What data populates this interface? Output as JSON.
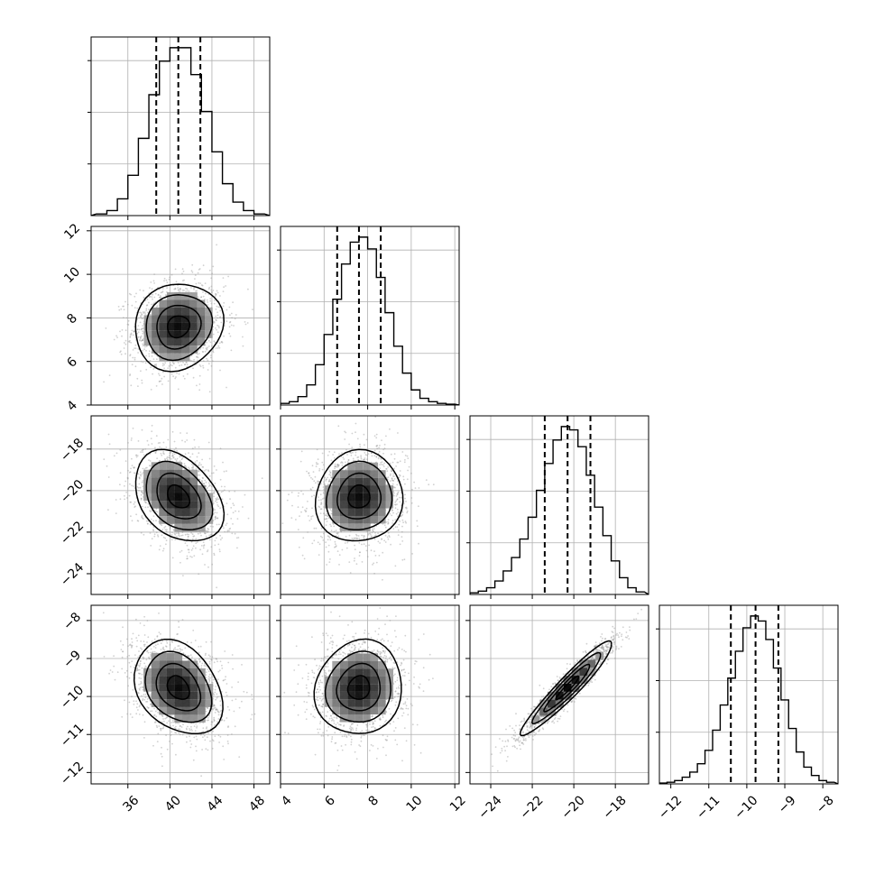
{
  "chart_data": {
    "type": "corner",
    "parameters": [
      {
        "range": [
          32.5,
          49.5
        ],
        "ticks": [
          36,
          40,
          44,
          48
        ],
        "tick_labels": [
          "36",
          "40",
          "44",
          "48"
        ],
        "quantiles": [
          38.7,
          40.8,
          42.9
        ],
        "hist_bins": [
          33.0,
          34.0,
          35.0,
          36.0,
          37.0,
          38.0,
          39.0,
          40.0,
          41.0,
          42.0,
          43.0,
          44.0,
          45.0,
          46.0,
          47.0,
          48.0,
          49.0
        ],
        "hist_counts": [
          0.01,
          0.03,
          0.1,
          0.24,
          0.46,
          0.72,
          0.92,
          1.0,
          1.0,
          0.84,
          0.62,
          0.38,
          0.19,
          0.08,
          0.03,
          0.01
        ]
      },
      {
        "range": [
          4.0,
          12.2
        ],
        "ticks": [
          4,
          6,
          8,
          10,
          12
        ],
        "tick_labels": [
          "4",
          "6",
          "8",
          "10",
          "12"
        ],
        "quantiles": [
          6.6,
          7.6,
          8.6
        ],
        "hist_bins": [
          4.0,
          4.4,
          4.8,
          5.2,
          5.6,
          6.0,
          6.4,
          6.8,
          7.2,
          7.6,
          8.0,
          8.4,
          8.8,
          9.2,
          9.6,
          10.0,
          10.4,
          10.8,
          11.2,
          11.6,
          12.0
        ],
        "hist_counts": [
          0.01,
          0.02,
          0.05,
          0.12,
          0.24,
          0.42,
          0.63,
          0.84,
          0.97,
          1.0,
          0.93,
          0.76,
          0.55,
          0.35,
          0.19,
          0.09,
          0.04,
          0.02,
          0.01,
          0.005
        ]
      },
      {
        "range": [
          -25.0,
          -16.4
        ],
        "ticks": [
          -24,
          -22,
          -20,
          -18
        ],
        "tick_labels": [
          "−24",
          "−22",
          "−20",
          "−18"
        ],
        "quantiles": [
          -21.4,
          -20.3,
          -19.2
        ],
        "hist_bins": [
          -25.0,
          -24.6,
          -24.2,
          -23.8,
          -23.4,
          -23.0,
          -22.6,
          -22.2,
          -21.8,
          -21.4,
          -21.0,
          -20.6,
          -20.2,
          -19.8,
          -19.4,
          -19.0,
          -18.6,
          -18.2,
          -17.8,
          -17.4,
          -17.0,
          -16.6
        ],
        "hist_counts": [
          0.01,
          0.02,
          0.04,
          0.08,
          0.14,
          0.22,
          0.33,
          0.46,
          0.62,
          0.78,
          0.92,
          1.0,
          0.98,
          0.88,
          0.71,
          0.52,
          0.35,
          0.2,
          0.1,
          0.04,
          0.015
        ]
      },
      {
        "range": [
          -12.3,
          -7.6
        ],
        "ticks": [
          -12,
          -11,
          -10,
          -9,
          -8
        ],
        "tick_labels": [
          "−12",
          "−11",
          "−10",
          "−9",
          "−8"
        ],
        "quantiles": [
          -10.42,
          -9.77,
          -9.17
        ],
        "hist_bins": [
          -12.3,
          -12.1,
          -11.9,
          -11.7,
          -11.5,
          -11.3,
          -11.1,
          -10.9,
          -10.7,
          -10.5,
          -10.3,
          -10.1,
          -9.9,
          -9.7,
          -9.5,
          -9.3,
          -9.1,
          -8.9,
          -8.7,
          -8.5,
          -8.3,
          -8.1,
          -7.9,
          -7.7
        ],
        "hist_counts": [
          0.005,
          0.01,
          0.02,
          0.04,
          0.07,
          0.12,
          0.2,
          0.32,
          0.47,
          0.63,
          0.79,
          0.93,
          1.0,
          0.97,
          0.86,
          0.69,
          0.5,
          0.33,
          0.19,
          0.1,
          0.05,
          0.02,
          0.01
        ]
      }
    ],
    "means": [
      40.8,
      7.6,
      -20.3,
      -9.77
    ],
    "sigmas": [
      2.1,
      1.0,
      1.1,
      0.62
    ],
    "correlations": [
      [
        1.0,
        0.1,
        -0.35,
        -0.3
      ],
      [
        0.1,
        1.0,
        0.05,
        0.08
      ],
      [
        -0.35,
        0.05,
        1.0,
        0.95
      ],
      [
        -0.3,
        0.08,
        0.95,
        1.0
      ]
    ],
    "contour_levels_sigma": [
      0.5,
      1.0,
      1.5,
      2.0
    ],
    "grid": true,
    "colors": {
      "line": "#000000",
      "grid": "#b0b0b0",
      "scatter": "#9a9a9a",
      "density_low": "#d8d8d8",
      "density_high": "#000000"
    }
  }
}
